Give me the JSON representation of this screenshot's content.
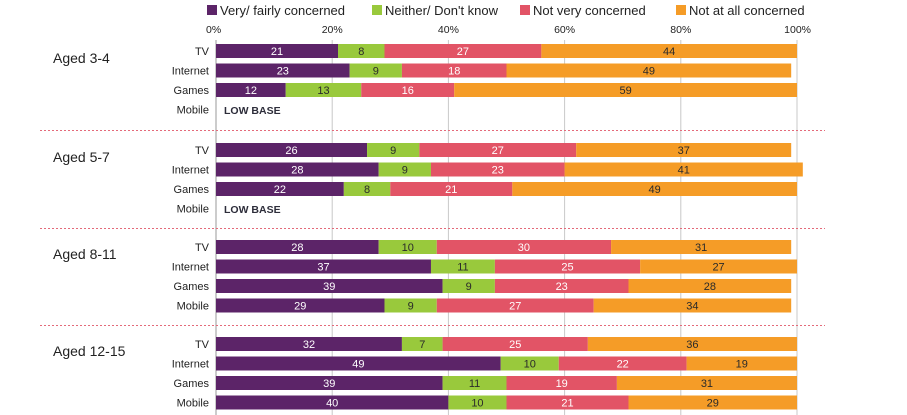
{
  "chart_data": {
    "type": "bar",
    "orientation": "horizontal",
    "stacked": true,
    "xlim": [
      0,
      100
    ],
    "x_ticks": [
      "0%",
      "20%",
      "40%",
      "60%",
      "80%",
      "100%"
    ],
    "x_tick_values": [
      0,
      20,
      40,
      60,
      80,
      100
    ],
    "grid": true,
    "legend_position": "top",
    "series": [
      {
        "name": "Very/ fairly concerned",
        "color": "#5c2468",
        "label_color": "#ffffff"
      },
      {
        "name": "Neither/ Don't know",
        "color": "#99c93c",
        "label_color": "#2a2a2a"
      },
      {
        "name": "Not very concerned",
        "color": "#e25466",
        "label_color": "#ffffff"
      },
      {
        "name": "Not at all concerned",
        "color": "#f59c27",
        "label_color": "#2a2a2a"
      }
    ],
    "groups": [
      {
        "label": "Aged 3-4",
        "rows": [
          {
            "label": "TV",
            "values": [
              21,
              8,
              27,
              44
            ]
          },
          {
            "label": "Internet",
            "values": [
              23,
              9,
              18,
              49
            ]
          },
          {
            "label": "Games",
            "values": [
              12,
              13,
              16,
              59
            ]
          },
          {
            "label": "Mobile",
            "values": null,
            "note": "LOW BASE"
          }
        ]
      },
      {
        "label": "Aged 5-7",
        "rows": [
          {
            "label": "TV",
            "values": [
              26,
              9,
              27,
              37
            ]
          },
          {
            "label": "Internet",
            "values": [
              28,
              9,
              23,
              41
            ]
          },
          {
            "label": "Games",
            "values": [
              22,
              8,
              21,
              49
            ]
          },
          {
            "label": "Mobile",
            "values": null,
            "note": "LOW BASE"
          }
        ]
      },
      {
        "label": "Aged 8-11",
        "rows": [
          {
            "label": "TV",
            "values": [
              28,
              10,
              30,
              31
            ]
          },
          {
            "label": "Internet",
            "values": [
              37,
              11,
              25,
              27
            ]
          },
          {
            "label": "Games",
            "values": [
              39,
              9,
              23,
              28
            ]
          },
          {
            "label": "Mobile",
            "values": [
              29,
              9,
              27,
              34
            ]
          }
        ]
      },
      {
        "label": "Aged 12-15",
        "rows": [
          {
            "label": "TV",
            "values": [
              32,
              7,
              25,
              36
            ]
          },
          {
            "label": "Internet",
            "values": [
              49,
              10,
              22,
              19
            ]
          },
          {
            "label": "Games",
            "values": [
              39,
              11,
              19,
              31
            ]
          },
          {
            "label": "Mobile",
            "values": [
              40,
              10,
              21,
              29
            ]
          }
        ]
      }
    ]
  }
}
